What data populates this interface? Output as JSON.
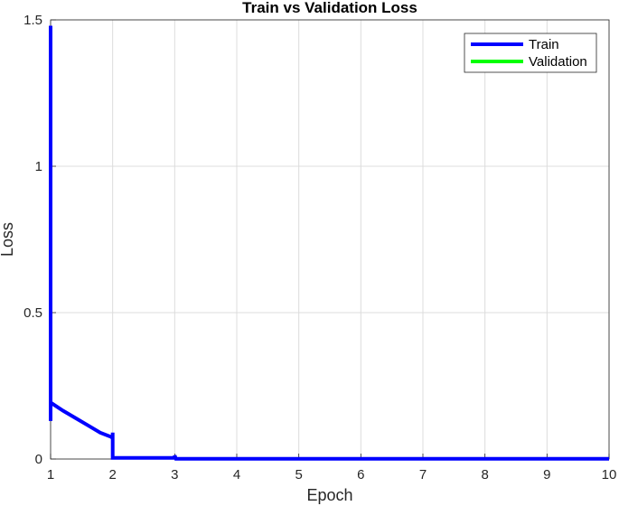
{
  "chart_data": {
    "type": "line",
    "title": "Train vs Validation Loss",
    "xlabel": "Epoch",
    "ylabel": "Loss",
    "xlim": [
      1,
      10
    ],
    "ylim": [
      0,
      1.5
    ],
    "x_ticks": [
      "1",
      "2",
      "3",
      "4",
      "5",
      "6",
      "7",
      "8",
      "9",
      "10"
    ],
    "y_ticks": [
      "0",
      "0.5",
      "1",
      "1.5"
    ],
    "grid": true,
    "legend_position": "top-right",
    "series": [
      {
        "name": "Train",
        "color": "#0000ff",
        "x": [
          1.0,
          1.0,
          1.0,
          1.0,
          1.0,
          1.0,
          1.02,
          1.2,
          1.4,
          1.6,
          1.8,
          1.98,
          2.0,
          2.0,
          2.0,
          2.0,
          2.05,
          2.5,
          2.98,
          3.0,
          3.0,
          3.02,
          4,
          5,
          6,
          7,
          8,
          9,
          10
        ],
        "y": [
          0.13,
          1.48,
          0.5,
          0.3,
          0.25,
          0.19,
          0.19,
          0.165,
          0.14,
          0.115,
          0.09,
          0.075,
          0.07,
          0.09,
          0.005,
          0.004,
          0.004,
          0.004,
          0.004,
          0.004,
          0.012,
          0.001,
          0.001,
          0.001,
          0.001,
          0.001,
          0.001,
          0.001,
          0.001
        ]
      },
      {
        "name": "Validation",
        "color": "#00ff00",
        "x": [],
        "y": []
      }
    ]
  }
}
